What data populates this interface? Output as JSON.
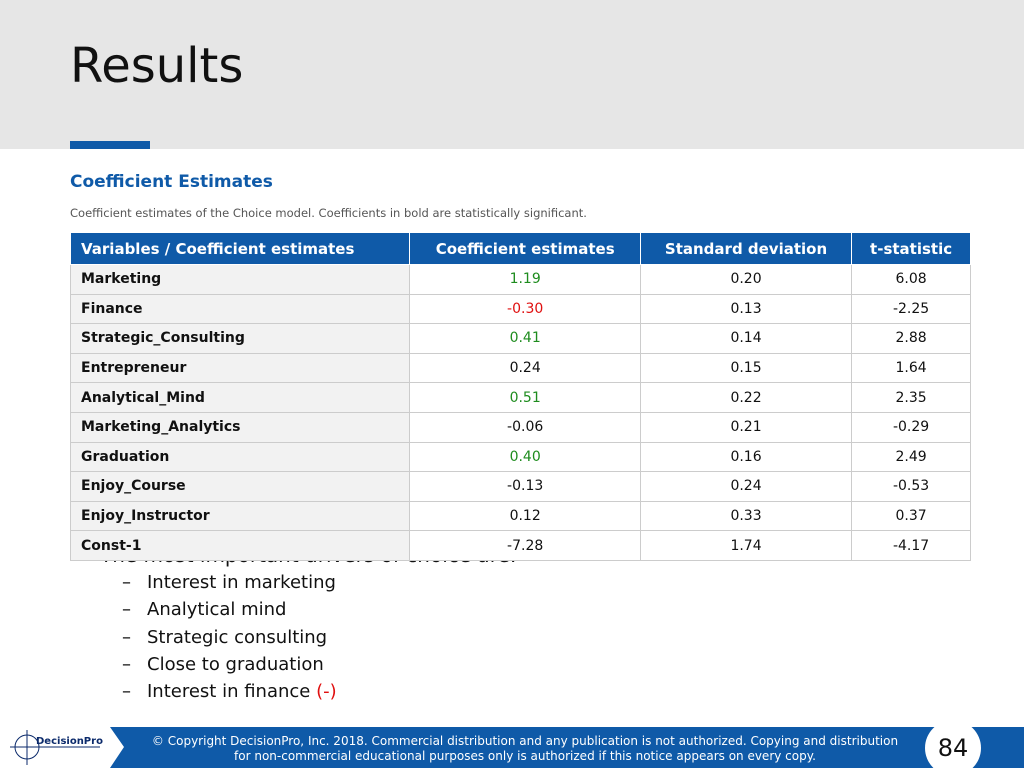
{
  "header": {
    "title": "Results"
  },
  "section": {
    "title": "Coefficient Estimates",
    "caption": "Coefficient estimates of the Choice model.  Coefficients in bold are statistically significant."
  },
  "table": {
    "columns": [
      "Variables / Coefficient estimates",
      "Coefficient estimates",
      "Standard deviation",
      "t-statistic"
    ],
    "rows": [
      {
        "cells": [
          "Marketing",
          "1.19",
          "0.20",
          "6.08"
        ],
        "color": "#1e8c1e"
      },
      {
        "cells": [
          "Finance",
          "-0.30",
          "0.13",
          "-2.25"
        ],
        "color": "#e01010"
      },
      {
        "cells": [
          "Strategic_Consulting",
          "0.41",
          "0.14",
          "2.88"
        ],
        "color": "#1e8c1e"
      },
      {
        "cells": [
          "Entrepreneur",
          "0.24",
          "0.15",
          "1.64"
        ]
      },
      {
        "cells": [
          "Analytical_Mind",
          "0.51",
          "0.22",
          "2.35"
        ],
        "color": "#1e8c1e"
      },
      {
        "cells": [
          "Marketing_Analytics",
          "-0.06",
          "0.21",
          "-0.29"
        ]
      },
      {
        "cells": [
          "Graduation",
          "0.40",
          "0.16",
          "2.49"
        ],
        "color": "#1e8c1e"
      },
      {
        "cells": [
          "Enjoy_Course",
          "-0.13",
          "0.24",
          "-0.53"
        ]
      },
      {
        "cells": [
          "Enjoy_Instructor",
          "0.12",
          "0.33",
          "0.37"
        ]
      },
      {
        "cells": [
          "Const-1",
          "-7.28",
          "1.74",
          "-4.17"
        ]
      }
    ]
  },
  "bullets": {
    "lead": "The most important drivers of choice are:",
    "items": [
      {
        "text": "Interest in marketing"
      },
      {
        "text": "Analytical mind"
      },
      {
        "text": "Strategic consulting"
      },
      {
        "text": "Close to graduation"
      },
      {
        "text": "Interest in finance",
        "note": "(-)",
        "note_color": "#e01010"
      }
    ]
  },
  "footer": {
    "logo": "DecisionPro",
    "copyright": [
      "© Copyright DecisionPro, Inc.  2018. Commercial distribution and any publication is not authorized. Copying and distribution",
      "for non-commercial educational purposes only is authorized if this notice appears on every copy."
    ],
    "page": "84"
  }
}
